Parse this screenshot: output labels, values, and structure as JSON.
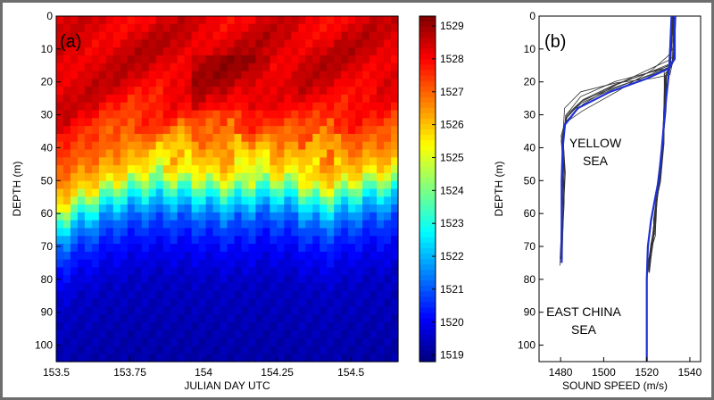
{
  "chart_data": [
    {
      "type": "heatmap",
      "panel_label": "(a)",
      "xlabel": "JULIAN DAY UTC",
      "ylabel": "DEPTH (m)",
      "xlim": [
        153.5,
        154.66
      ],
      "ylim": [
        105,
        0
      ],
      "x_ticks": [
        "153.5",
        "153.75",
        "154",
        "154.25",
        "154.5"
      ],
      "x_tick_values": [
        153.5,
        153.75,
        154.0,
        154.25,
        154.5
      ],
      "y_ticks": [
        "0",
        "10",
        "20",
        "30",
        "40",
        "50",
        "60",
        "70",
        "80",
        "90",
        "100"
      ],
      "y_tick_values": [
        0,
        10,
        20,
        30,
        40,
        50,
        60,
        70,
        80,
        90,
        100
      ],
      "colorbar": {
        "ticks": [
          "1519",
          "1520",
          "1521",
          "1522",
          "1523",
          "1524",
          "1525",
          "1526",
          "1527",
          "1528",
          "1529"
        ],
        "tick_values": [
          1519,
          1520,
          1521,
          1522,
          1523,
          1524,
          1525,
          1526,
          1527,
          1528,
          1529
        ],
        "range": [
          1518.8,
          1529.3
        ],
        "colormap": "jet"
      },
      "grid": false,
      "x": [
        153.5,
        153.6,
        153.7,
        153.8,
        153.9,
        154.0,
        154.1,
        154.2,
        154.3,
        154.4,
        154.5,
        154.6
      ],
      "thermocline_depth_m": [
        60,
        55,
        51,
        49,
        49,
        50,
        51,
        49,
        50,
        54,
        51,
        49
      ],
      "warm_core_depth_m": [
        [
          38,
          48
        ],
        [
          36,
          46
        ],
        [
          34,
          44
        ],
        [
          30,
          40
        ],
        [
          35,
          45
        ],
        [
          39,
          50
        ],
        [
          40,
          50
        ]
      ],
      "depth_profile_m": [
        0,
        10,
        20,
        30,
        40,
        48,
        52,
        56,
        62,
        70,
        80,
        95,
        105
      ],
      "sound_speed_mps": [
        1528.2,
        1528.5,
        1528.3,
        1527.6,
        1526.8,
        1525.6,
        1523.8,
        1522.4,
        1521.0,
        1520.1,
        1519.5,
        1519.3,
        1519.2
      ]
    },
    {
      "type": "line",
      "panel_label": "(b)",
      "xlabel": "SOUND SPEED (m/s)",
      "ylabel": "DEPTH (m)",
      "xlim": [
        1470,
        1545
      ],
      "ylim": [
        105,
        0
      ],
      "x_ticks": [
        "1480",
        "1500",
        "1520",
        "1540"
      ],
      "x_tick_values": [
        1480,
        1500,
        1520,
        1540
      ],
      "y_ticks": [
        "0",
        "10",
        "20",
        "30",
        "40",
        "50",
        "60",
        "70",
        "80",
        "90",
        "100"
      ],
      "y_tick_values": [
        0,
        10,
        20,
        30,
        40,
        50,
        60,
        70,
        80,
        90,
        100
      ],
      "grid": false,
      "annotations": [
        {
          "lines": [
            "YELLOW",
            "SEA"
          ]
        },
        {
          "lines": [
            "EAST CHINA",
            "SEA"
          ]
        }
      ],
      "series": [
        {
          "group": "YELLOW SEA",
          "style": "thin-black",
          "count": 8,
          "depth": [
            0,
            12,
            15,
            18,
            22,
            26,
            30,
            36,
            45,
            60,
            75
          ],
          "speed": [
            1533,
            1533,
            1531,
            1522,
            1505,
            1490,
            1483,
            1481,
            1481,
            1480.5,
            1480.5
          ],
          "spread": {
            "depth_shift": 3,
            "speed_shift": 1.2
          }
        },
        {
          "group": "YELLOW SEA",
          "style": "thick-blue",
          "depth": [
            0,
            13,
            16,
            19,
            23,
            28,
            33,
            40,
            50,
            60,
            75
          ],
          "speed": [
            1533,
            1533,
            1530,
            1520,
            1503,
            1488,
            1482,
            1481,
            1480.5,
            1480.5,
            1480.5
          ]
        },
        {
          "group": "EAST CHINA SEA",
          "style": "thin-black",
          "count": 10,
          "depth": [
            0,
            15,
            18,
            30,
            40,
            50,
            55,
            60,
            65,
            70,
            78
          ],
          "speed": [
            1532,
            1531,
            1529,
            1528,
            1527,
            1526,
            1525,
            1524,
            1523,
            1522,
            1521
          ],
          "spread": {
            "depth_shift": 2,
            "speed_shift": 1.0
          }
        },
        {
          "group": "EAST CHINA SEA",
          "style": "thick-blue",
          "depth": [
            0,
            16,
            25,
            40,
            50,
            55,
            62,
            70,
            80,
            90,
            105
          ],
          "speed": [
            1531.5,
            1530.5,
            1529,
            1527,
            1525.5,
            1524,
            1522,
            1520.5,
            1520,
            1520,
            1520
          ]
        }
      ]
    }
  ]
}
